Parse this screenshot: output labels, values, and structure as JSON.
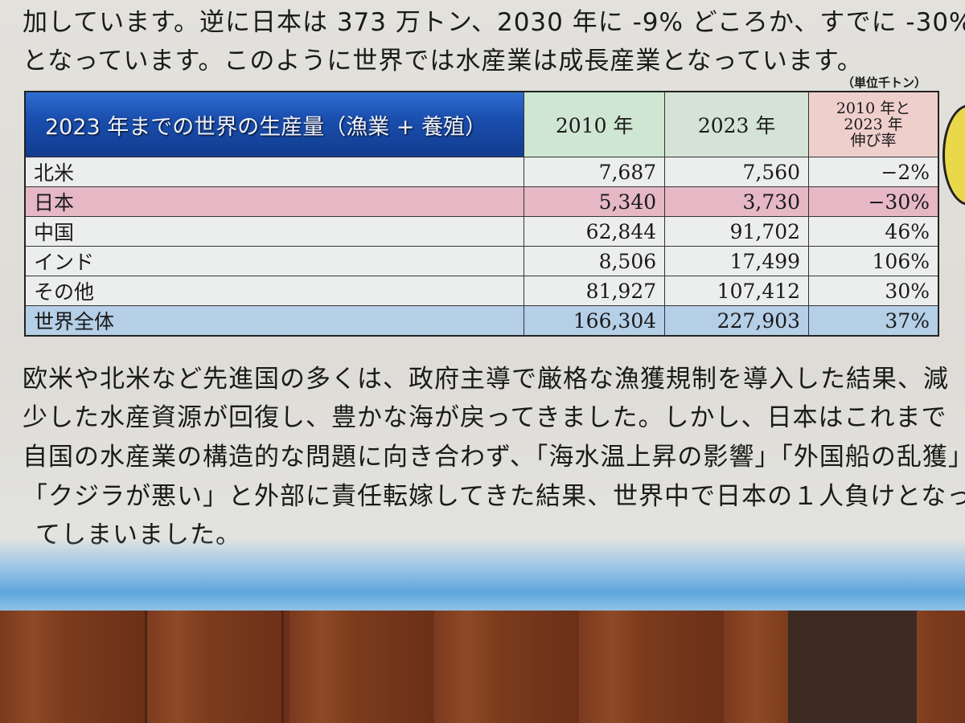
{
  "intro_lines": [
    "加しています。逆に日本は 373 万トン、2030 年に -9% どころか、すでに -30%",
    "となっています。このように世界では水産業は成長産業となっています。"
  ],
  "table": {
    "unit": "（単位千トン）",
    "headers": {
      "title": "2023 年までの世界の生産量（漁業 + 養殖）",
      "col2010": "2010 年",
      "col2023": "2023 年",
      "rate_line1": "2010 年と",
      "rate_line2": "2023 年",
      "rate_line3": "伸び率"
    },
    "rows": [
      {
        "name": "北米",
        "v2010": "7,687",
        "v2023": "7,560",
        "rate": "−2%"
      },
      {
        "name": "日本",
        "v2010": "5,340",
        "v2023": "3,730",
        "rate": "−30%"
      },
      {
        "name": "中国",
        "v2010": "62,844",
        "v2023": "91,702",
        "rate": "46%"
      },
      {
        "name": "インド",
        "v2010": "8,506",
        "v2023": "17,499",
        "rate": "106%"
      },
      {
        "name": "その他",
        "v2010": "81,927",
        "v2023": "107,412",
        "rate": "30%"
      },
      {
        "name": "世界全体",
        "v2010": "166,304",
        "v2023": "227,903",
        "rate": "37%"
      }
    ]
  },
  "body_lines": [
    "欧米や北米など先進国の多くは、政府主導で厳格な漁獲規制を導入した結果、減",
    "少した水産資源が回復し、豊かな海が戻ってきました。しかし、日本はこれまで",
    "自国の水産業の構造的な問題に向き合わず、「海水温上昇の影響」「外国船の乱獲」",
    "「クジラが悪い」と外部に責任転嫁してきた結果、世界中で日本の１人負けとなっ",
    "てしまいました。"
  ]
}
